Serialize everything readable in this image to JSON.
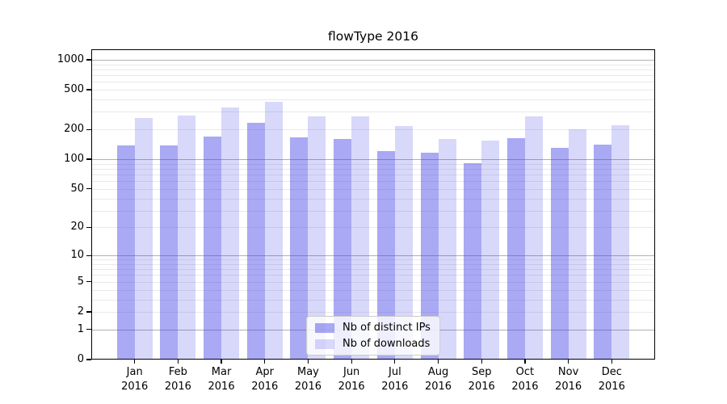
{
  "chart_data": {
    "type": "bar",
    "title": "flowType 2016",
    "categories": [
      "Jan 2016",
      "Feb 2016",
      "Mar 2016",
      "Apr 2016",
      "May 2016",
      "Jun 2016",
      "Jul 2016",
      "Aug 2016",
      "Sep 2016",
      "Oct 2016",
      "Nov 2016",
      "Dec 2016"
    ],
    "series": [
      {
        "name": "Nb of distinct IPs",
        "base_color": "#3c3ce6",
        "alpha": 0.44,
        "fill_on_white": "#a9a9f5",
        "values": [
          138,
          137,
          168,
          235,
          165,
          160,
          121,
          117,
          91,
          162,
          130,
          141
        ]
      },
      {
        "name": "Nb of downloads",
        "base_color": "#3c3ce6",
        "alpha": 0.2,
        "fill_on_white": "#d8d8f8",
        "values": [
          263,
          276,
          333,
          381,
          272,
          273,
          216,
          161,
          153,
          270,
          200,
          220
        ]
      }
    ],
    "xlabel": "",
    "ylabel": "",
    "yscale": "log1p",
    "ylim": [
      0,
      1270
    ],
    "yticks": [
      0,
      1,
      2,
      5,
      10,
      20,
      50,
      100,
      200,
      500,
      1000
    ],
    "ytick_major_gridlines": [
      1,
      10,
      100,
      1000
    ],
    "ytick_minor_gridlines": [
      2,
      3,
      4,
      5,
      6,
      7,
      8,
      9,
      20,
      30,
      40,
      50,
      60,
      70,
      80,
      90,
      200,
      300,
      400,
      500,
      600,
      700,
      800,
      900
    ],
    "grid": true,
    "legend_position": "lower center"
  },
  "style": {
    "background": "#ffffff",
    "spine_color": "#000000",
    "grid_major_color": "#b0b0b0",
    "grid_minor_color": "#e9e9e9",
    "text_color": "#000000",
    "legend_border_color": "#cccccc"
  }
}
